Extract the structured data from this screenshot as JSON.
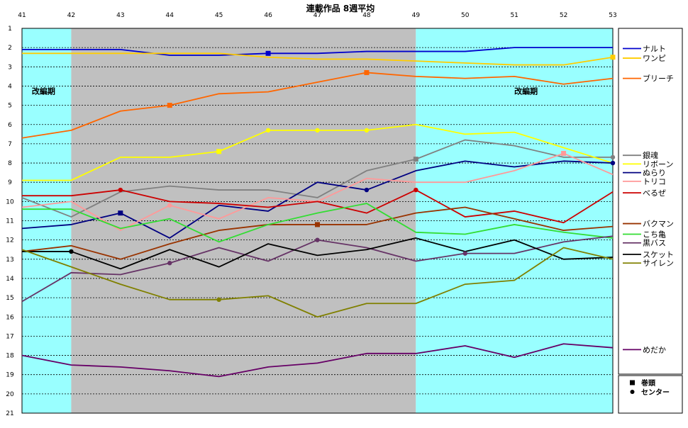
{
  "chart_data": {
    "type": "line",
    "title": "連載作品 8週平均",
    "x": [
      41,
      42,
      43,
      44,
      45,
      46,
      47,
      48,
      49,
      50,
      51,
      52,
      53
    ],
    "xlim": [
      41,
      53
    ],
    "ylim": [
      1,
      21
    ],
    "y_inverted": true,
    "y_ticks": [
      1,
      2,
      3,
      4,
      5,
      6,
      7,
      8,
      9,
      10,
      11,
      12,
      13,
      14,
      15,
      16,
      17,
      18,
      19,
      20,
      21
    ],
    "grid": true,
    "legend_position": "right",
    "background_bands": [
      {
        "from": 41,
        "to": 42,
        "color": "#99ffff"
      },
      {
        "from": 42,
        "to": 49,
        "color": "#c0c0c0"
      },
      {
        "from": 49,
        "to": 53,
        "color": "#99ffff"
      }
    ],
    "annotations": [
      {
        "text": "改編期",
        "x": 41.2,
        "y": 4.4
      },
      {
        "text": "改編期",
        "x": 51.0,
        "y": 4.4
      }
    ],
    "series": [
      {
        "name": "ナルト",
        "color": "#0000cc",
        "values": [
          2.1,
          2.1,
          2.1,
          2.4,
          2.4,
          2.3,
          2.3,
          2.2,
          2.2,
          2.2,
          2.0,
          2.0,
          2.0
        ],
        "markers": [
          {
            "x": 46,
            "symbol": "square"
          }
        ]
      },
      {
        "name": "ワンピ",
        "color": "#ffcc00",
        "values": [
          2.3,
          2.3,
          2.3,
          2.3,
          2.3,
          2.5,
          2.6,
          2.6,
          2.7,
          2.8,
          2.9,
          2.9,
          2.5
        ],
        "markers": [
          {
            "x": 53,
            "symbol": "square"
          }
        ]
      },
      {
        "name": "ブリーチ",
        "color": "#ff6600",
        "values": [
          6.7,
          6.3,
          5.3,
          5.0,
          4.4,
          4.3,
          3.8,
          3.3,
          3.5,
          3.6,
          3.5,
          3.9,
          3.6
        ],
        "markers": [
          {
            "x": 44,
            "symbol": "square"
          },
          {
            "x": 48,
            "symbol": "square"
          }
        ]
      },
      {
        "name": "銀魂",
        "color": "#808080",
        "values": [
          9.8,
          10.8,
          9.5,
          9.2,
          9.4,
          9.4,
          9.8,
          8.4,
          7.8,
          6.8,
          7.1,
          7.7,
          7.7
        ],
        "markers": [
          {
            "x": 49,
            "symbol": "square"
          },
          {
            "x": 53,
            "symbol": "circle"
          }
        ]
      },
      {
        "name": "リボーン",
        "color": "#ffff00",
        "values": [
          8.9,
          8.9,
          7.7,
          7.7,
          7.4,
          6.3,
          6.3,
          6.3,
          6.0,
          6.5,
          6.4,
          7.2,
          8.0
        ],
        "markers": [
          {
            "x": 45,
            "symbol": "square"
          },
          {
            "x": 46,
            "symbol": "circle"
          },
          {
            "x": 47,
            "symbol": "circle"
          },
          {
            "x": 48,
            "symbol": "circle"
          }
        ]
      },
      {
        "name": "ぬらり",
        "color": "#000080",
        "values": [
          11.4,
          11.2,
          10.6,
          11.9,
          10.2,
          10.5,
          9.0,
          9.4,
          8.4,
          7.9,
          8.2,
          7.9,
          8.0
        ],
        "markers": [
          {
            "x": 43,
            "symbol": "square"
          },
          {
            "x": 48,
            "symbol": "circle"
          },
          {
            "x": 53,
            "symbol": "circle"
          }
        ]
      },
      {
        "name": "トリコ",
        "color": "#ff9999",
        "values": [
          10.3,
          10.0,
          11.5,
          10.2,
          10.9,
          9.8,
          10.0,
          8.8,
          9.0,
          9.0,
          8.4,
          7.5,
          8.6
        ],
        "markers": [
          {
            "x": 44,
            "symbol": "circle"
          },
          {
            "x": 52,
            "symbol": "square"
          }
        ]
      },
      {
        "name": "べるぜ",
        "color": "#cc0000",
        "values": [
          9.7,
          9.7,
          9.4,
          10.0,
          10.1,
          10.3,
          10.0,
          10.6,
          9.4,
          10.8,
          10.5,
          11.1,
          9.5
        ],
        "markers": [
          {
            "x": 43,
            "symbol": "circle"
          },
          {
            "x": 49,
            "symbol": "circle"
          }
        ]
      },
      {
        "name": "バクマン",
        "color": "#993300",
        "values": [
          12.6,
          12.3,
          13.0,
          12.2,
          11.5,
          11.2,
          11.2,
          11.2,
          10.6,
          10.3,
          10.9,
          11.5,
          11.3
        ],
        "markers": [
          {
            "x": 47,
            "symbol": "square"
          }
        ]
      },
      {
        "name": "こち亀",
        "color": "#33dd33",
        "values": [
          10.4,
          10.4,
          11.4,
          10.9,
          12.1,
          11.2,
          10.6,
          10.1,
          11.6,
          11.7,
          11.2,
          11.6,
          11.9
        ],
        "markers": []
      },
      {
        "name": "黒バス",
        "color": "#663366",
        "values": [
          15.2,
          13.7,
          13.8,
          13.2,
          12.4,
          13.1,
          12.0,
          12.4,
          13.1,
          12.7,
          12.7,
          12.1,
          11.8
        ],
        "markers": [
          {
            "x": 44,
            "symbol": "circle"
          },
          {
            "x": 47,
            "symbol": "circle"
          },
          {
            "x": 50,
            "symbol": "circle"
          }
        ]
      },
      {
        "name": "スケット",
        "color": "#000000",
        "values": [
          12.6,
          12.6,
          13.5,
          12.5,
          13.4,
          12.2,
          12.8,
          12.5,
          11.9,
          12.6,
          12.0,
          13.0,
          12.9
        ],
        "markers": [
          {
            "x": 42,
            "symbol": "circle"
          }
        ]
      },
      {
        "name": "サイレン",
        "color": "#808000",
        "values": [
          12.5,
          13.4,
          14.3,
          15.1,
          15.1,
          14.9,
          16.0,
          15.3,
          15.3,
          14.3,
          14.1,
          12.4,
          13.0
        ],
        "markers": [
          {
            "x": 45,
            "symbol": "circle"
          }
        ]
      },
      {
        "name": "めだか",
        "color": "#660066",
        "values": [
          18.0,
          18.5,
          18.6,
          18.8,
          19.1,
          18.6,
          18.4,
          17.9,
          17.9,
          17.5,
          18.1,
          17.4,
          17.6
        ],
        "markers": []
      }
    ],
    "legend_items": [
      {
        "name": "ナルト",
        "y": 2.05
      },
      {
        "name": "ワンピ",
        "y": 2.55
      },
      {
        "name": "ブリーチ",
        "y": 3.6
      },
      {
        "name": "銀魂",
        "y": 7.6
      },
      {
        "name": "リボーン",
        "y": 8.05
      },
      {
        "name": "ぬらり",
        "y": 8.5
      },
      {
        "name": "トリコ",
        "y": 8.95
      },
      {
        "name": "べるぜ",
        "y": 9.55
      },
      {
        "name": "バクマン",
        "y": 11.15
      },
      {
        "name": "こち亀",
        "y": 11.7
      },
      {
        "name": "黒バス",
        "y": 12.15
      },
      {
        "name": "スケット",
        "y": 12.75
      },
      {
        "name": "サイレン",
        "y": 13.2
      },
      {
        "name": "めだか",
        "y": 17.7
      }
    ],
    "marker_legend": [
      {
        "symbol": "square",
        "label": "巻頭"
      },
      {
        "symbol": "circle",
        "label": "センター"
      }
    ]
  }
}
